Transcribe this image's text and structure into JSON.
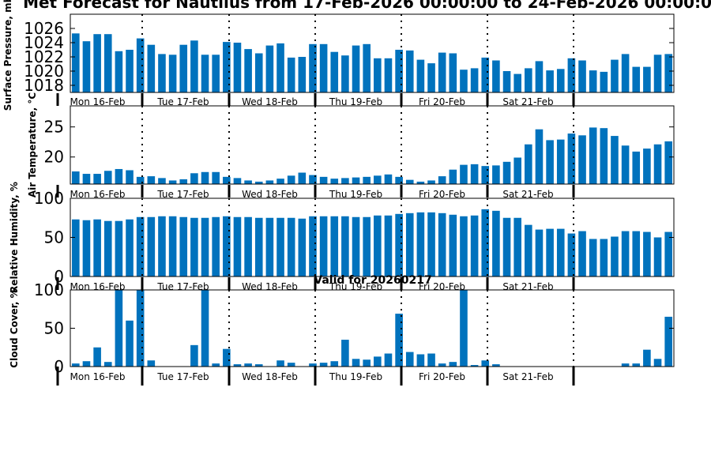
{
  "figure": {
    "title": "Met Forecast for Nautilus from 17-Feb-2026 00:00:00 to 24-Feb-2026 00:00:00",
    "valid_text": "Valid for 20260217",
    "bar_color": "#0072bd"
  },
  "day_labels": [
    "Mon 16-Feb",
    "Tue 17-Feb",
    "Wed 18-Feb",
    "Thu 19-Feb",
    "Fri 20-Feb",
    "Sat 21-Feb"
  ],
  "chart_data": [
    {
      "type": "bar",
      "title": "",
      "ylabel": "Surface Pressure, mb",
      "ylim": [
        1017,
        1028
      ],
      "yticks": [
        1018,
        1020,
        1022,
        1024,
        1026
      ],
      "values": [
        1025.3,
        1024.2,
        1025.2,
        1025.2,
        1022.8,
        1023.0,
        1024.6,
        1023.7,
        1022.4,
        1022.3,
        1023.7,
        1024.3,
        1022.3,
        1022.3,
        1024.1,
        1024.0,
        1023.1,
        1022.5,
        1023.6,
        1023.9,
        1021.9,
        1022.0,
        1023.8,
        1023.8,
        1022.7,
        1022.2,
        1023.6,
        1023.8,
        1021.8,
        1021.8,
        1023.0,
        1022.9,
        1021.6,
        1021.1,
        1022.6,
        1022.5,
        1020.2,
        1020.4,
        1021.9,
        1021.5,
        1020.0,
        1019.6,
        1020.4,
        1021.4,
        1020.1,
        1020.3,
        1021.8,
        1021.5,
        1020.1,
        1019.9,
        1021.6,
        1022.4,
        1020.6,
        1020.6,
        1022.3,
        1022.4
      ]
    },
    {
      "type": "bar",
      "title": "",
      "ylabel": "Air Temperature, °C",
      "ylim": [
        15.5,
        28.5
      ],
      "yticks": [
        20,
        25
      ],
      "values": [
        17.6,
        17.2,
        17.2,
        17.7,
        18.0,
        17.8,
        16.7,
        16.8,
        16.5,
        16.1,
        16.3,
        17.3,
        17.5,
        17.5,
        16.7,
        16.5,
        16.1,
        15.9,
        16.1,
        16.4,
        16.9,
        17.4,
        17.0,
        16.7,
        16.4,
        16.5,
        16.6,
        16.7,
        16.9,
        17.1,
        16.7,
        16.2,
        15.9,
        16.1,
        16.8,
        17.9,
        18.7,
        18.8,
        18.5,
        18.6,
        19.2,
        19.9,
        22.1,
        24.6,
        22.8,
        22.9,
        23.9,
        23.6,
        24.9,
        24.8,
        23.5,
        21.9,
        20.9,
        21.4,
        22.1,
        22.6
      ]
    },
    {
      "type": "bar",
      "title": "",
      "ylabel": "Relative Humidity, %",
      "ylim": [
        0,
        100
      ],
      "yticks": [
        0,
        50,
        100
      ],
      "values": [
        73,
        72,
        73,
        71,
        71,
        73,
        76,
        76,
        77,
        77,
        76,
        75,
        75,
        76,
        77,
        76,
        76,
        75,
        75,
        75,
        75,
        74,
        77,
        77,
        77,
        77,
        76,
        76,
        78,
        78,
        80,
        81,
        82,
        82,
        81,
        79,
        77,
        78,
        86,
        84,
        75,
        75,
        66,
        60,
        61,
        61,
        55,
        58,
        48,
        48,
        51,
        58,
        58,
        57,
        50,
        57
      ]
    },
    {
      "type": "bar",
      "title": "",
      "ylabel": "Cloud Cover, %",
      "ylim": [
        0,
        100
      ],
      "yticks": [
        0,
        50,
        100
      ],
      "values": [
        4,
        7,
        25,
        6,
        100,
        60,
        100,
        8,
        0,
        0,
        0,
        28,
        100,
        4,
        23,
        3,
        4,
        3,
        0,
        8,
        5,
        0,
        4,
        5,
        7,
        35,
        10,
        9,
        13,
        17,
        69,
        19,
        16,
        17,
        4,
        6,
        100,
        2,
        8,
        3,
        0,
        0,
        0,
        0,
        0,
        0,
        0,
        0,
        0,
        0,
        0,
        4,
        4,
        22,
        10,
        65
      ]
    }
  ]
}
